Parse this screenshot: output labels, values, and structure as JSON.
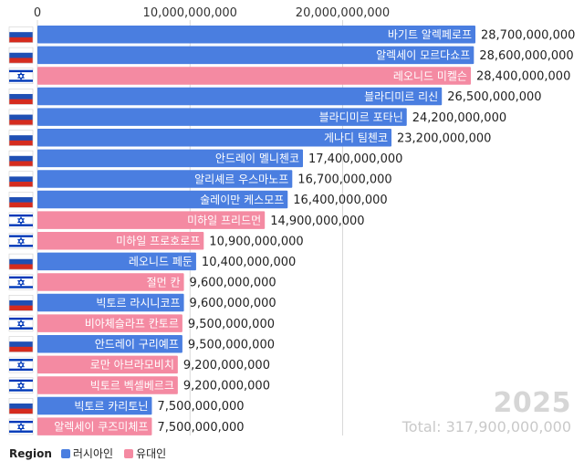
{
  "chart_data": {
    "type": "bar",
    "orientation": "horizontal",
    "axis_ticks": [
      0,
      10000000000,
      20000000000
    ],
    "axis_tick_labels": [
      "0",
      "10,000,000,000",
      "20,000,000,000"
    ],
    "xlim": [
      0,
      28700000000
    ],
    "colors": {
      "russian": "#4a7ee0",
      "jewish": "#f48aa2",
      "grid": "#d9d9d9"
    },
    "rows": [
      {
        "name": "바기트 알렉페로프",
        "value": 28700000000,
        "value_label": "28,700,000,000",
        "group": "russian",
        "flag": "russia-flag-icon"
      },
      {
        "name": "알렉세이 모르다쇼프",
        "value": 28600000000,
        "value_label": "28,600,000,000",
        "group": "russian",
        "flag": "russia-flag-icon"
      },
      {
        "name": "레오니드 미켈슨",
        "value": 28400000000,
        "value_label": "28,400,000,000",
        "group": "jewish",
        "flag": "israel-flag-icon"
      },
      {
        "name": "블라디미르 리신",
        "value": 26500000000,
        "value_label": "26,500,000,000",
        "group": "russian",
        "flag": "russia-flag-icon"
      },
      {
        "name": "블라디미르 포타닌",
        "value": 24200000000,
        "value_label": "24,200,000,000",
        "group": "russian",
        "flag": "russia-flag-icon"
      },
      {
        "name": "게나디 팀첸코",
        "value": 23200000000,
        "value_label": "23,200,000,000",
        "group": "russian",
        "flag": "russia-flag-icon"
      },
      {
        "name": "안드레이 멜니첸코",
        "value": 17400000000,
        "value_label": "17,400,000,000",
        "group": "russian",
        "flag": "russia-flag-icon"
      },
      {
        "name": "알리셰르 우스마노프",
        "value": 16700000000,
        "value_label": "16,700,000,000",
        "group": "russian",
        "flag": "russia-flag-icon"
      },
      {
        "name": "술레이만 케스모프",
        "value": 16400000000,
        "value_label": "16,400,000,000",
        "group": "russian",
        "flag": "russia-flag-icon"
      },
      {
        "name": "미하일 프리드먼",
        "value": 14900000000,
        "value_label": "14,900,000,000",
        "group": "jewish",
        "flag": "israel-flag-icon"
      },
      {
        "name": "미하일 프로호로프",
        "value": 10900000000,
        "value_label": "10,900,000,000",
        "group": "jewish",
        "flag": "israel-flag-icon"
      },
      {
        "name": "레오니드 페둔",
        "value": 10400000000,
        "value_label": "10,400,000,000",
        "group": "russian",
        "flag": "russia-flag-icon"
      },
      {
        "name": "절먼 칸",
        "value": 9600000000,
        "value_label": "9,600,000,000",
        "group": "jewish",
        "flag": "israel-flag-icon"
      },
      {
        "name": "빅토르 라시니코프",
        "value": 9600000000,
        "value_label": "9,600,000,000",
        "group": "russian",
        "flag": "russia-flag-icon"
      },
      {
        "name": "비아체슬라프 칸토르",
        "value": 9500000000,
        "value_label": "9,500,000,000",
        "group": "jewish",
        "flag": "israel-flag-icon"
      },
      {
        "name": "안드레이 구리예프",
        "value": 9500000000,
        "value_label": "9,500,000,000",
        "group": "russian",
        "flag": "russia-flag-icon"
      },
      {
        "name": "로만 아브라모비치",
        "value": 9200000000,
        "value_label": "9,200,000,000",
        "group": "jewish",
        "flag": "israel-flag-icon"
      },
      {
        "name": "빅토르 벡셀베르크",
        "value": 9200000000,
        "value_label": "9,200,000,000",
        "group": "jewish",
        "flag": "israel-flag-icon"
      },
      {
        "name": "빅토르 카리토닌",
        "value": 7500000000,
        "value_label": "7,500,000,000",
        "group": "russian",
        "flag": "russia-flag-icon"
      },
      {
        "name": "알렉세이 쿠즈미체프",
        "value": 7500000000,
        "value_label": "7,500,000,000",
        "group": "jewish",
        "flag": "israel-flag-icon"
      }
    ],
    "year": "2025",
    "total_label": "Total: 317,900,000,000",
    "legend": {
      "title": "Region",
      "items": [
        {
          "label": "러시아인",
          "group": "russian"
        },
        {
          "label": "유대인",
          "group": "jewish"
        }
      ]
    }
  }
}
